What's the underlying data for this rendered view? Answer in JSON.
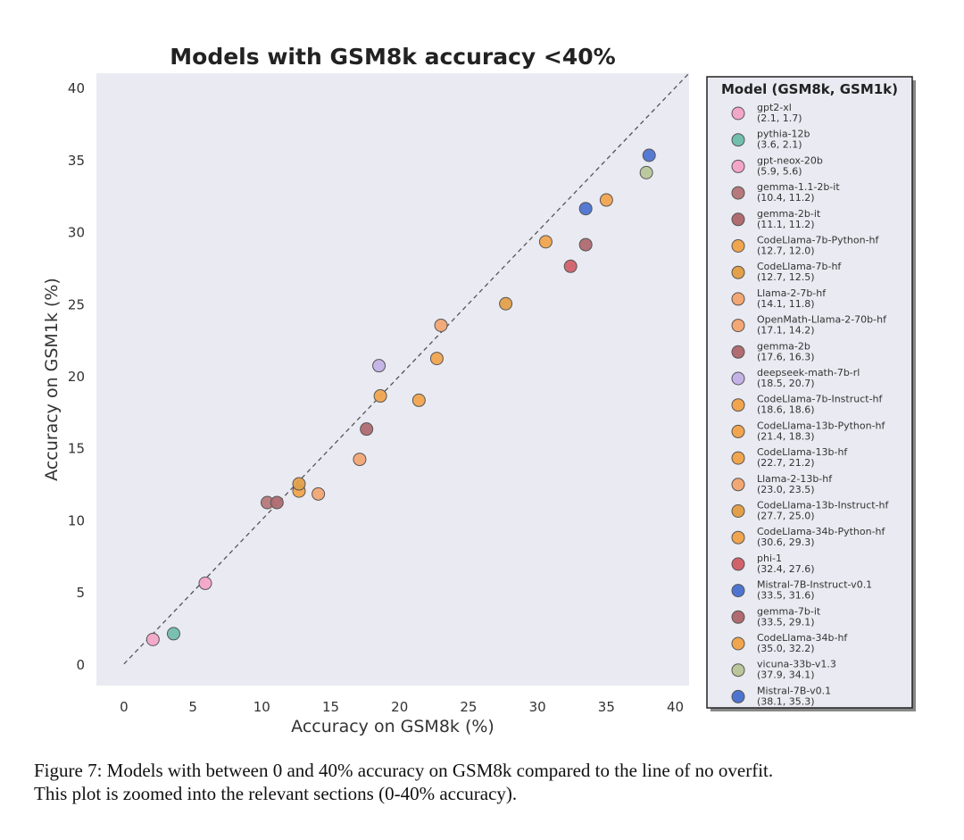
{
  "chart_data": {
    "type": "scatter",
    "title": "Models with GSM8k accuracy <40%",
    "xlabel": "Accuracy on GSM8k (%)",
    "ylabel": "Accuracy on GSM1k (%)",
    "xlim": [
      -2,
      41
    ],
    "ylim": [
      -1.5,
      41
    ],
    "xticks": [
      "0",
      "5",
      "10",
      "15",
      "20",
      "25",
      "30",
      "35",
      "40"
    ],
    "yticks": [
      "0",
      "5",
      "10",
      "15",
      "20",
      "25",
      "30",
      "35",
      "40"
    ],
    "reference_line": {
      "style": "dashed",
      "from": [
        0,
        0
      ],
      "to": [
        41,
        41
      ]
    },
    "grid": false,
    "legend": {
      "title": "Model (GSM8k, GSM1k)",
      "placement": "outside-right"
    },
    "series": [
      {
        "name": "gpt2-xl",
        "label": "(2.1, 1.7)",
        "x": 2.1,
        "y": 1.7,
        "color": "#f4a6c8"
      },
      {
        "name": "pythia-12b",
        "label": "(3.6, 2.1)",
        "x": 3.6,
        "y": 2.1,
        "color": "#72bfae"
      },
      {
        "name": "gpt-neox-20b",
        "label": "(5.9, 5.6)",
        "x": 5.9,
        "y": 5.6,
        "color": "#f4a6c8"
      },
      {
        "name": "gemma-1.1-2b-it",
        "label": "(10.4, 11.2)",
        "x": 10.4,
        "y": 11.2,
        "color": "#b7797b"
      },
      {
        "name": "gemma-2b-it",
        "label": "(11.1, 11.2)",
        "x": 11.1,
        "y": 11.2,
        "color": "#b06c70"
      },
      {
        "name": "CodeLlama-7b-Python-hf",
        "label": "(12.7, 12.0)",
        "x": 12.7,
        "y": 12.0,
        "color": "#f1a54f"
      },
      {
        "name": "CodeLlama-7b-hf",
        "label": "(12.7, 12.5)",
        "x": 12.7,
        "y": 12.5,
        "color": "#e3a04a"
      },
      {
        "name": "Llama-2-7b-hf",
        "label": "(14.1, 11.8)",
        "x": 14.1,
        "y": 11.8,
        "color": "#f3a774"
      },
      {
        "name": "OpenMath-Llama-2-70b-hf",
        "label": "(17.1, 14.2)",
        "x": 17.1,
        "y": 14.2,
        "color": "#f3a774"
      },
      {
        "name": "gemma-2b",
        "label": "(17.6, 16.3)",
        "x": 17.6,
        "y": 16.3,
        "color": "#b06c70"
      },
      {
        "name": "deepseek-math-7b-rl",
        "label": "(18.5, 20.7)",
        "x": 18.5,
        "y": 20.7,
        "color": "#c4b2e6"
      },
      {
        "name": "CodeLlama-7b-Instruct-hf",
        "label": "(18.6, 18.6)",
        "x": 18.6,
        "y": 18.6,
        "color": "#f1a54f"
      },
      {
        "name": "CodeLlama-13b-Python-hf",
        "label": "(21.4, 18.3)",
        "x": 21.4,
        "y": 18.3,
        "color": "#f1a54f"
      },
      {
        "name": "CodeLlama-13b-hf",
        "label": "(22.7, 21.2)",
        "x": 22.7,
        "y": 21.2,
        "color": "#f1a54f"
      },
      {
        "name": "Llama-2-13b-hf",
        "label": "(23.0, 23.5)",
        "x": 23.0,
        "y": 23.5,
        "color": "#f3a774"
      },
      {
        "name": "CodeLlama-13b-Instruct-hf",
        "label": "(27.7, 25.0)",
        "x": 27.7,
        "y": 25.0,
        "color": "#e3a04a"
      },
      {
        "name": "CodeLlama-34b-Python-hf",
        "label": "(30.6, 29.3)",
        "x": 30.6,
        "y": 29.3,
        "color": "#f1a54f"
      },
      {
        "name": "phi-1",
        "label": "(32.4, 27.6)",
        "x": 32.4,
        "y": 27.6,
        "color": "#d1626a"
      },
      {
        "name": "Mistral-7B-Instruct-v0.1",
        "label": "(33.5, 31.6)",
        "x": 33.5,
        "y": 31.6,
        "color": "#4d74d1"
      },
      {
        "name": "gemma-7b-it",
        "label": "(33.5, 29.1)",
        "x": 33.5,
        "y": 29.1,
        "color": "#b06c70"
      },
      {
        "name": "CodeLlama-34b-hf",
        "label": "(35.0, 32.2)",
        "x": 35.0,
        "y": 32.2,
        "color": "#f1a54f"
      },
      {
        "name": "vicuna-33b-v1.3",
        "label": "(37.9, 34.1)",
        "x": 37.9,
        "y": 34.1,
        "color": "#b9c79a"
      },
      {
        "name": "Mistral-7B-v0.1",
        "label": "(38.1, 35.3)",
        "x": 38.1,
        "y": 35.3,
        "color": "#4d74d1"
      }
    ]
  },
  "caption": {
    "line1": "Figure 7: Models with between 0 and 40% accuracy on GSM8k compared to the line of no overfit.",
    "line2": "This plot is zoomed into the relevant sections (0-40% accuracy)."
  }
}
